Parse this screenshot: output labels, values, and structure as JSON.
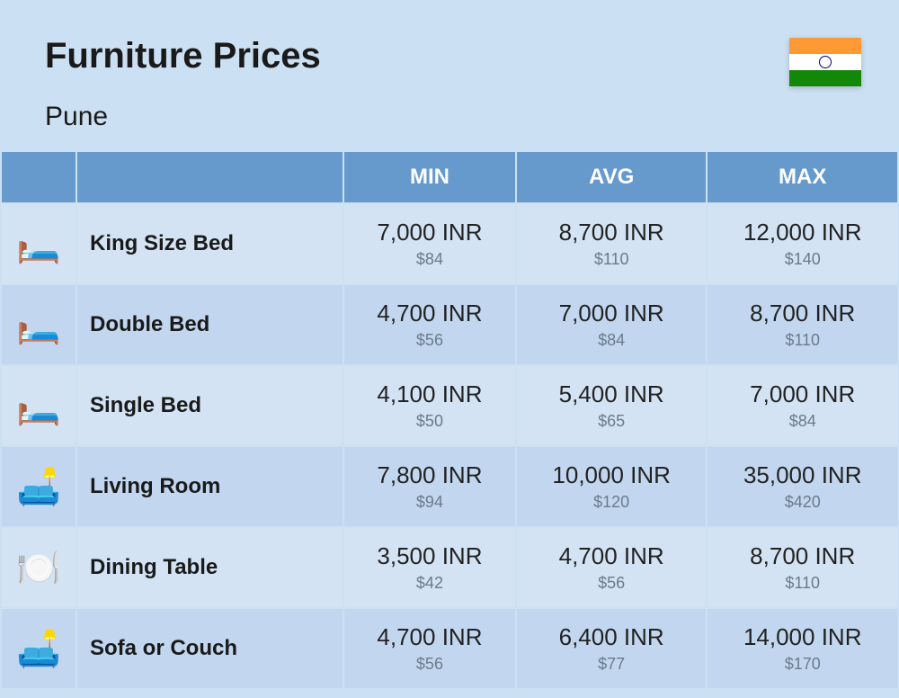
{
  "header": {
    "title": "Furniture Prices",
    "subtitle": "Pune",
    "flag": {
      "top_color": "#ff9933",
      "mid_color": "#ffffff",
      "bottom_color": "#138808",
      "chakra_color": "#000080"
    }
  },
  "table": {
    "columns": [
      "",
      "",
      "MIN",
      "AVG",
      "MAX"
    ],
    "header_bg": "#6699cc",
    "header_text_color": "#ffffff",
    "row_bg_odd": "#d4e3f4",
    "row_bg_even": "#c2d7ef",
    "price_main_color": "#222222",
    "price_sub_color": "#6a7a8a",
    "rows": [
      {
        "icon": "🛏️",
        "name": "King Size Bed",
        "min": {
          "inr": "7,000 INR",
          "usd": "$84"
        },
        "avg": {
          "inr": "8,700 INR",
          "usd": "$110"
        },
        "max": {
          "inr": "12,000 INR",
          "usd": "$140"
        }
      },
      {
        "icon": "🛏️",
        "name": "Double Bed",
        "min": {
          "inr": "4,700 INR",
          "usd": "$56"
        },
        "avg": {
          "inr": "7,000 INR",
          "usd": "$84"
        },
        "max": {
          "inr": "8,700 INR",
          "usd": "$110"
        }
      },
      {
        "icon": "🛏️",
        "name": "Single Bed",
        "min": {
          "inr": "4,100 INR",
          "usd": "$50"
        },
        "avg": {
          "inr": "5,400 INR",
          "usd": "$65"
        },
        "max": {
          "inr": "7,000 INR",
          "usd": "$84"
        }
      },
      {
        "icon": "🛋️",
        "name": "Living Room",
        "min": {
          "inr": "7,800 INR",
          "usd": "$94"
        },
        "avg": {
          "inr": "10,000 INR",
          "usd": "$120"
        },
        "max": {
          "inr": "35,000 INR",
          "usd": "$420"
        }
      },
      {
        "icon": "🍽️",
        "name": "Dining Table",
        "min": {
          "inr": "3,500 INR",
          "usd": "$42"
        },
        "avg": {
          "inr": "4,700 INR",
          "usd": "$56"
        },
        "max": {
          "inr": "8,700 INR",
          "usd": "$110"
        }
      },
      {
        "icon": "🛋️",
        "name": "Sofa or Couch",
        "min": {
          "inr": "4,700 INR",
          "usd": "$56"
        },
        "avg": {
          "inr": "6,400 INR",
          "usd": "$77"
        },
        "max": {
          "inr": "14,000 INR",
          "usd": "$170"
        }
      }
    ]
  },
  "styling": {
    "page_bg": "#cce0f4",
    "title_fontsize": 40,
    "subtitle_fontsize": 30,
    "header_fontsize": 24,
    "name_fontsize": 24,
    "price_main_fontsize": 26,
    "price_sub_fontsize": 18
  }
}
